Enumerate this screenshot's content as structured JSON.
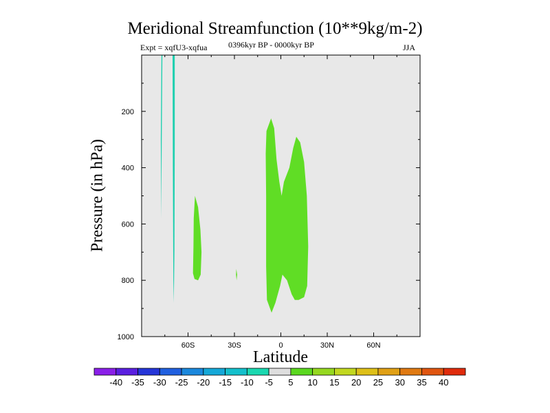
{
  "chart_data": {
    "type": "contour",
    "title": "Meridional Streamfunction (10**9kg/m-2)",
    "expt_label": "Expt = xqfU3-xqfua",
    "period_label": "0396kyr BP - 0000kyr BP",
    "season_label": "JJA",
    "xlabel": "Latitude",
    "ylabel": "Pressure (in hPa)",
    "xlim": [
      -90,
      90
    ],
    "ylim": [
      1000,
      0
    ],
    "x_ticks": [
      {
        "value": -60,
        "label": "60S"
      },
      {
        "value": -30,
        "label": "30S"
      },
      {
        "value": 0,
        "label": "0"
      },
      {
        "value": 30,
        "label": "30N"
      },
      {
        "value": 60,
        "label": "60N"
      }
    ],
    "y_ticks": [
      {
        "value": 200,
        "label": "200"
      },
      {
        "value": 400,
        "label": "400"
      },
      {
        "value": 600,
        "label": "600"
      },
      {
        "value": 800,
        "label": "800"
      },
      {
        "value": 1000,
        "label": "1000"
      }
    ],
    "background_color": "#e8e8e8",
    "regions": [
      {
        "name": "neg-strip-1",
        "level": -10,
        "color": "#20d0b0",
        "points": [
          [
            -77.2,
            0
          ],
          [
            -76.6,
            0
          ],
          [
            -77.0,
            300
          ],
          [
            -77.3,
            580
          ],
          [
            -77.6,
            300
          ]
        ]
      },
      {
        "name": "neg-strip-2",
        "level": -10,
        "color": "#20d0b0",
        "points": [
          [
            -70.0,
            0
          ],
          [
            -68.6,
            0
          ],
          [
            -68.6,
            300
          ],
          [
            -68.8,
            700
          ],
          [
            -69.2,
            880
          ],
          [
            -69.5,
            800
          ],
          [
            -69.8,
            400
          ]
        ]
      },
      {
        "name": "pos-blob-60s",
        "level": 5,
        "color": "#60dd25",
        "points": [
          [
            -55.5,
            500
          ],
          [
            -53.5,
            540
          ],
          [
            -52.0,
            620
          ],
          [
            -51.3,
            700
          ],
          [
            -51.8,
            780
          ],
          [
            -53.5,
            800
          ],
          [
            -55.8,
            795
          ],
          [
            -56.8,
            775
          ],
          [
            -56.5,
            680
          ],
          [
            -56.3,
            580
          ]
        ]
      },
      {
        "name": "pos-blob-30s",
        "level": 5,
        "color": "#60dd25",
        "points": [
          [
            -28.8,
            760
          ],
          [
            -28.2,
            780
          ],
          [
            -28.6,
            800
          ],
          [
            -29.0,
            780
          ]
        ]
      },
      {
        "name": "pos-blob-equator",
        "level": 5,
        "color": "#60dd25",
        "points": [
          [
            -6.3,
            225
          ],
          [
            -4.3,
            260
          ],
          [
            -2.8,
            370
          ],
          [
            -1.0,
            450
          ],
          [
            0.5,
            500
          ],
          [
            2.0,
            450
          ],
          [
            5.5,
            400
          ],
          [
            8.0,
            330
          ],
          [
            10.0,
            290
          ],
          [
            12.5,
            310
          ],
          [
            15.0,
            380
          ],
          [
            16.8,
            500
          ],
          [
            17.7,
            680
          ],
          [
            17.0,
            820
          ],
          [
            15.0,
            860
          ],
          [
            11.5,
            870
          ],
          [
            9.0,
            870
          ],
          [
            7.0,
            850
          ],
          [
            4.0,
            800
          ],
          [
            1.0,
            780
          ],
          [
            -0.5,
            820
          ],
          [
            -3.5,
            880
          ],
          [
            -6.0,
            915
          ],
          [
            -9.0,
            870
          ],
          [
            -9.5,
            750
          ],
          [
            -9.5,
            500
          ],
          [
            -9.8,
            350
          ],
          [
            -9.3,
            270
          ]
        ]
      }
    ],
    "colorbar": {
      "levels": [
        -40,
        -35,
        -30,
        -25,
        -20,
        -15,
        -10,
        -5,
        5,
        10,
        15,
        20,
        25,
        30,
        35,
        40
      ],
      "labels": [
        "-40",
        "-35",
        "-30",
        "-25",
        "-20",
        "-15",
        "-10",
        "-5",
        "5",
        "10",
        "15",
        "20",
        "25",
        "30",
        "35",
        "40"
      ],
      "colors": [
        "#8a1fe8",
        "#5a1fe0",
        "#2535d8",
        "#2060e0",
        "#1a88dd",
        "#15a8d8",
        "#14c0cc",
        "#1ad8b0",
        "#dedede",
        "#5bd820",
        "#95d820",
        "#c2d820",
        "#dec018",
        "#e0a015",
        "#e07a12",
        "#e05510",
        "#e02b0c"
      ]
    }
  }
}
